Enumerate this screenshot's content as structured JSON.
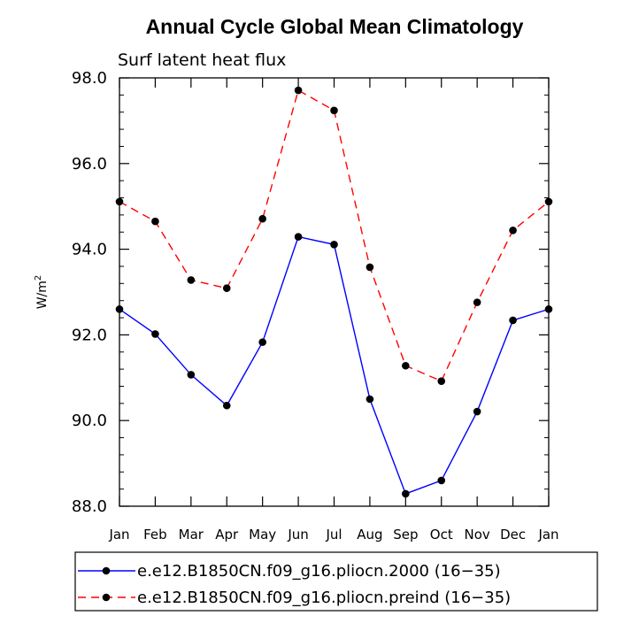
{
  "chart_data": {
    "type": "line",
    "title": "Annual Cycle Global Mean Climatology",
    "subtitle": "Surf latent heat flux",
    "ylabel": "W/m",
    "ylabel_exp": "2",
    "xlabel": "",
    "ylim": [
      88.0,
      98.0
    ],
    "yticks": [
      "88.0",
      "90.0",
      "92.0",
      "94.0",
      "96.0",
      "98.0"
    ],
    "ytick_values": [
      88,
      90,
      92,
      94,
      96,
      98
    ],
    "categories": [
      "Jan",
      "Feb",
      "Mar",
      "Apr",
      "May",
      "Jun",
      "Jul",
      "Aug",
      "Sep",
      "Oct",
      "Nov",
      "Dec",
      "Jan"
    ],
    "series": [
      {
        "name": "e.e12.B1850CN.f09_g16.pliocn.2000 (16−35)",
        "color": "#0000ff",
        "dash": "solid",
        "values": [
          92.6,
          92.02,
          91.07,
          90.35,
          91.83,
          94.29,
          94.11,
          90.5,
          88.29,
          88.6,
          90.21,
          92.34,
          92.6
        ]
      },
      {
        "name": "e.e12.B1850CN.f09_g16.pliocn.preind (16−35)",
        "color": "#ff0000",
        "dash": "dashed",
        "values": [
          95.11,
          94.65,
          93.28,
          93.09,
          94.71,
          97.71,
          97.24,
          93.58,
          91.28,
          90.92,
          92.76,
          94.44,
          95.11
        ]
      }
    ],
    "legend_position": "bottom"
  }
}
